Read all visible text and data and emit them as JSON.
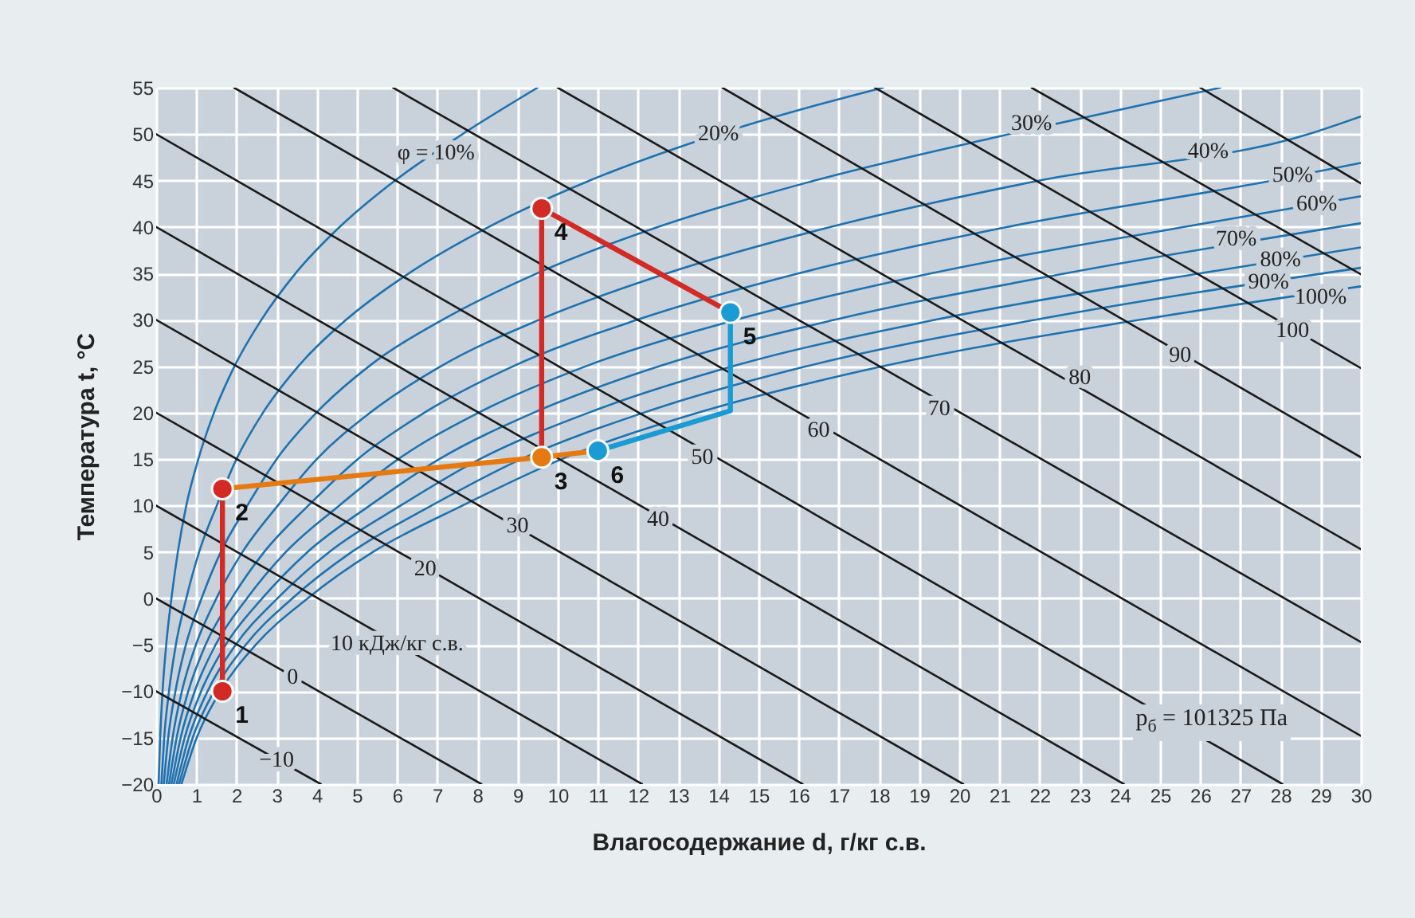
{
  "chart_data": {
    "type": "line",
    "xlabel": "Влагосодержание d, г/кг с.в.",
    "ylabel": "Температура t, °C",
    "xlim": [
      0,
      30
    ],
    "ylim": [
      -20,
      55
    ],
    "xticks": [
      0,
      1,
      2,
      3,
      4,
      5,
      6,
      7,
      8,
      9,
      10,
      11,
      12,
      13,
      14,
      15,
      16,
      17,
      18,
      19,
      20,
      21,
      22,
      23,
      24,
      25,
      26,
      27,
      28,
      29,
      30
    ],
    "yticks": [
      -20,
      -15,
      -10,
      -5,
      0,
      5,
      10,
      15,
      20,
      25,
      30,
      35,
      40,
      45,
      50,
      55
    ],
    "grid": true,
    "series": [
      {
        "color": "#1f72b0",
        "x": [
          0.06,
          0.1,
          0.16,
          0.25,
          0.38,
          0.54,
          0.75,
          1.05,
          1.44,
          1.95,
          2.62,
          3.47,
          4.57,
          5.95,
          7.63,
          9.5
        ],
        "values": [
          -20,
          -15,
          -10,
          -5,
          0,
          5,
          10,
          15,
          20,
          25,
          30,
          35,
          40,
          45,
          50,
          55
        ]
      },
      {
        "color": "#1f72b0",
        "x": [
          0.13,
          0.2,
          0.32,
          0.49,
          0.75,
          1.07,
          1.51,
          2.0,
          2.66,
          3.54,
          4.73,
          6.29,
          8.28,
          10.8,
          14.0,
          18.1
        ],
        "values": [
          -20,
          -15,
          -10,
          -5,
          0,
          5,
          10,
          15,
          20,
          25,
          30,
          35,
          40,
          45,
          50,
          55
        ]
      },
      {
        "color": "#1f72b0",
        "x": [
          0.19,
          0.3,
          0.48,
          0.74,
          1.13,
          1.61,
          2.27,
          3.0,
          3.99,
          5.3,
          7.13,
          9.48,
          12.5,
          16.4,
          21.25,
          26.5
        ],
        "values": [
          -20,
          -15,
          -10,
          -5,
          0,
          5,
          10,
          15,
          20,
          25,
          30,
          35,
          40,
          45,
          50,
          55
        ]
      },
      {
        "color": "#1f72b0",
        "x": [
          0.26,
          0.41,
          0.64,
          0.99,
          1.5,
          2.15,
          3.03,
          4.0,
          5.33,
          7.09,
          9.54,
          12.72,
          16.8,
          22.0,
          28.7,
          30
        ],
        "values": [
          -20,
          -15,
          -10,
          -5,
          0,
          5,
          10,
          15,
          20,
          25,
          30,
          35,
          40,
          45,
          50,
          51.9
        ]
      },
      {
        "color": "#1f72b0",
        "x": [
          0.32,
          0.51,
          0.8,
          1.23,
          1.88,
          2.69,
          3.79,
          5.02,
          6.68,
          8.89,
          11.98,
          16.0,
          21.2,
          27.8,
          30
        ],
        "values": [
          -20,
          -15,
          -10,
          -5,
          0,
          5,
          10,
          15,
          20,
          25,
          30,
          35,
          40,
          45,
          46.9
        ]
      },
      {
        "color": "#1f72b0",
        "x": [
          0.38,
          0.61,
          0.96,
          1.48,
          2.26,
          3.23,
          4.56,
          6.03,
          8.03,
          10.7,
          14.44,
          19.3,
          25.6,
          30
        ],
        "values": [
          -20,
          -15,
          -10,
          -5,
          0,
          5,
          10,
          15,
          20,
          25,
          30,
          35,
          40,
          43.3
        ]
      },
      {
        "color": "#1f72b0",
        "x": [
          0.44,
          0.71,
          1.12,
          1.73,
          2.64,
          3.77,
          5.32,
          7.05,
          9.4,
          12.53,
          16.9,
          22.65,
          30
        ],
        "values": [
          -20,
          -15,
          -10,
          -5,
          0,
          5,
          10,
          15,
          20,
          25,
          30,
          35,
          40.4
        ]
      },
      {
        "color": "#1f72b0",
        "x": [
          0.51,
          0.81,
          1.28,
          1.98,
          3.02,
          4.31,
          6.09,
          8.06,
          10.77,
          14.36,
          19.4,
          26.0,
          30
        ],
        "values": [
          -20,
          -15,
          -10,
          -5,
          0,
          5,
          10,
          15,
          20,
          25,
          30,
          35,
          37.8
        ]
      },
      {
        "color": "#1f72b0",
        "x": [
          0.57,
          0.91,
          1.44,
          2.23,
          3.39,
          4.87,
          6.86,
          9.09,
          12.14,
          16.2,
          21.9,
          30
        ],
        "values": [
          -20,
          -15,
          -10,
          -5,
          0,
          5,
          10,
          15,
          20,
          25,
          30,
          35.6
        ]
      },
      {
        "color": "#1f72b0",
        "x": [
          0.63,
          1.01,
          1.6,
          2.48,
          3.77,
          5.4,
          7.63,
          10.1,
          13.5,
          18.1,
          24.5,
          30
        ],
        "values": [
          -20,
          -15,
          -10,
          -5,
          0,
          5,
          10,
          15,
          20,
          25,
          30,
          33.6
        ]
      },
      {
        "color": "#1a1a1a",
        "x": [
          0,
          4.1
        ],
        "values": [
          -10,
          -20
        ]
      },
      {
        "color": "#1a1a1a",
        "x": [
          0,
          8.1
        ],
        "values": [
          0,
          -20
        ]
      },
      {
        "color": "#1a1a1a",
        "x": [
          0,
          12.1
        ],
        "values": [
          10,
          -20
        ]
      },
      {
        "color": "#1a1a1a",
        "x": [
          0,
          16.1
        ],
        "values": [
          20,
          -20
        ]
      },
      {
        "color": "#1a1a1a",
        "x": [
          0,
          20.1
        ],
        "values": [
          30,
          -20
        ]
      },
      {
        "color": "#1a1a1a",
        "x": [
          0,
          24.1
        ],
        "values": [
          40,
          -20
        ]
      },
      {
        "color": "#1a1a1a",
        "x": [
          0,
          28.05
        ],
        "values": [
          50,
          -20
        ]
      },
      {
        "color": "#1a1a1a",
        "x": [
          1.94,
          30
        ],
        "values": [
          55,
          -14.8
        ]
      },
      {
        "color": "#1a1a1a",
        "x": [
          5.9,
          30
        ],
        "values": [
          55,
          -4.7
        ]
      },
      {
        "color": "#1a1a1a",
        "x": [
          10,
          30
        ],
        "values": [
          55,
          5.3
        ]
      },
      {
        "color": "#1a1a1a",
        "x": [
          14.1,
          30
        ],
        "values": [
          55,
          15.2
        ]
      },
      {
        "color": "#1a1a1a",
        "x": [
          17.9,
          30
        ],
        "values": [
          55,
          24.8
        ]
      },
      {
        "color": "#1a1a1a",
        "x": [
          21.8,
          30
        ],
        "values": [
          55,
          34.9
        ]
      },
      {
        "color": "#1a1a1a",
        "x": [
          26,
          30
        ],
        "values": [
          55,
          44.7
        ]
      },
      {
        "color": "#d42a25",
        "x": [
          1.65,
          1.65
        ],
        "values": [
          -10,
          11.8
        ]
      },
      {
        "color": "#e67a12",
        "x": [
          1.65,
          9.6,
          11.0
        ],
        "values": [
          11.8,
          15.2,
          15.9
        ]
      },
      {
        "color": "#d42a25",
        "x": [
          9.6,
          9.6,
          14.3
        ],
        "values": [
          15.2,
          42,
          30.8
        ]
      },
      {
        "color": "#1b9bd3",
        "x": [
          14.3,
          14.3,
          11.0
        ],
        "values": [
          30.8,
          20.2,
          15.9
        ]
      },
      {
        "type": "scatter",
        "marker": "circle",
        "x": [
          1.65,
          1.65,
          9.6,
          9.6,
          14.3,
          11.0
        ],
        "values": [
          -10,
          11.8,
          15.2,
          42,
          30.8,
          15.9
        ],
        "colors": [
          "#d42a25",
          "#d42a25",
          "#e67a12",
          "#d42a25",
          "#1b9bd3",
          "#1b9bd3"
        ]
      }
    ],
    "annotations": [
      {
        "text": "φ = 10%",
        "x": 6.97,
        "y": 48
      },
      {
        "text": "20%",
        "x": 14.0,
        "y": 50
      },
      {
        "text": "30%",
        "x": 21.8,
        "y": 51.1
      },
      {
        "text": "40%",
        "x": 26.2,
        "y": 48.1
      },
      {
        "text": "50%",
        "x": 28.3,
        "y": 45.6
      },
      {
        "text": "60%",
        "x": 28.9,
        "y": 42.5
      },
      {
        "text": "70%",
        "x": 26.9,
        "y": 38.7
      },
      {
        "text": "80%",
        "x": 28.0,
        "y": 36.5
      },
      {
        "text": "90%",
        "x": 27.7,
        "y": 34.1
      },
      {
        "text": "100%",
        "x": 29.0,
        "y": 32.4
      },
      {
        "text": "−10",
        "x": 3.0,
        "y": -17.4
      },
      {
        "text": "0",
        "x": 3.4,
        "y": -8.5
      },
      {
        "text": "10 кДж/кг с.в.",
        "x": 6.0,
        "y": -4.9
      },
      {
        "text": "20",
        "x": 6.7,
        "y": 3.2
      },
      {
        "text": "30",
        "x": 9.0,
        "y": 7.8
      },
      {
        "text": "40",
        "x": 12.5,
        "y": 8.5
      },
      {
        "text": "50",
        "x": 13.6,
        "y": 15.2
      },
      {
        "text": "60",
        "x": 16.5,
        "y": 18.1
      },
      {
        "text": "70",
        "x": 19.5,
        "y": 20.4
      },
      {
        "text": "80",
        "x": 23.0,
        "y": 23.8
      },
      {
        "text": "90",
        "x": 25.5,
        "y": 26.2
      },
      {
        "text": "100",
        "x": 28.3,
        "y": 28.8
      },
      {
        "text": "1",
        "x": 1.65,
        "y": -10
      },
      {
        "text": "2",
        "x": 1.65,
        "y": 11.8
      },
      {
        "text": "3",
        "x": 9.6,
        "y": 15.2
      },
      {
        "text": "4",
        "x": 9.6,
        "y": 42
      },
      {
        "text": "5",
        "x": 14.3,
        "y": 30.8
      },
      {
        "text": "6",
        "x": 11.0,
        "y": 15.9
      },
      "p$_{б}$ = 101325 Па"
    ]
  }
}
